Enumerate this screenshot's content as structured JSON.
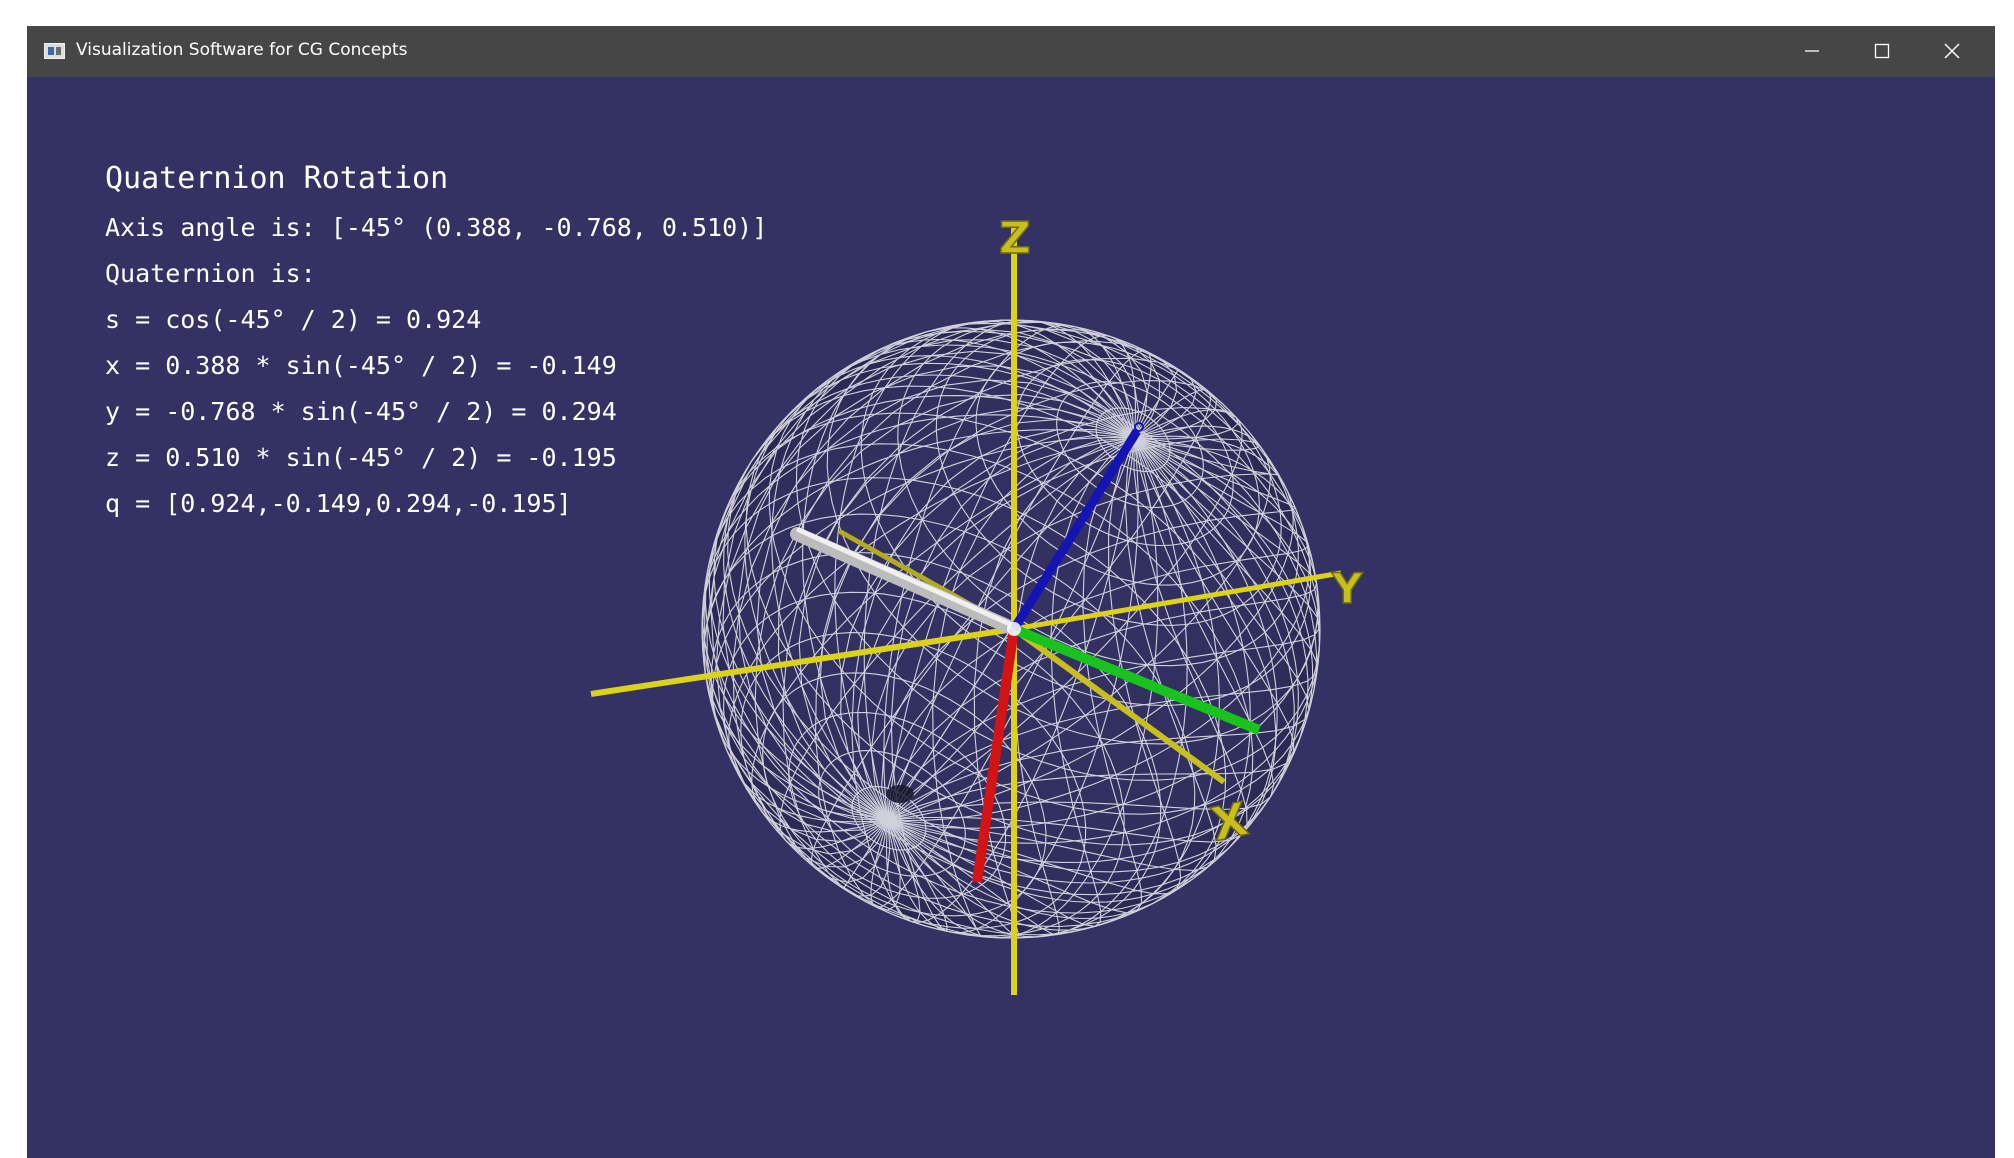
{
  "window": {
    "title": "Visualization Software for CG Concepts",
    "icon": "app-window-icon",
    "controls": {
      "minimize_icon": "minimize-icon",
      "maximize_icon": "maximize-icon",
      "close_icon": "close-icon"
    }
  },
  "panel": {
    "heading": "Quaternion Rotation",
    "lines": [
      "Axis angle is: [-45° (0.388, -0.768, 0.510)]",
      "Quaternion is:",
      "s = cos(-45° / 2) = 0.924",
      "x = 0.388 * sin(-45° / 2) = -0.149",
      "y = -0.768 * sin(-45° / 2) = 0.294",
      "z = 0.510 * sin(-45° / 2) = -0.195",
      "q = [0.924,-0.149,0.294,-0.195]"
    ]
  },
  "scene": {
    "axis_labels": {
      "z": "Z",
      "y": "Y",
      "x": "X"
    },
    "colors": {
      "background": "#343264",
      "axes": "#ddd21a",
      "axis_label": "#c8be1e",
      "vector_x": "#d21414",
      "vector_y": "#19c31e",
      "vector_z": "#1414b4",
      "rotation_axis": "#c8c8c8",
      "sphere_wire": "#ffffff"
    }
  }
}
